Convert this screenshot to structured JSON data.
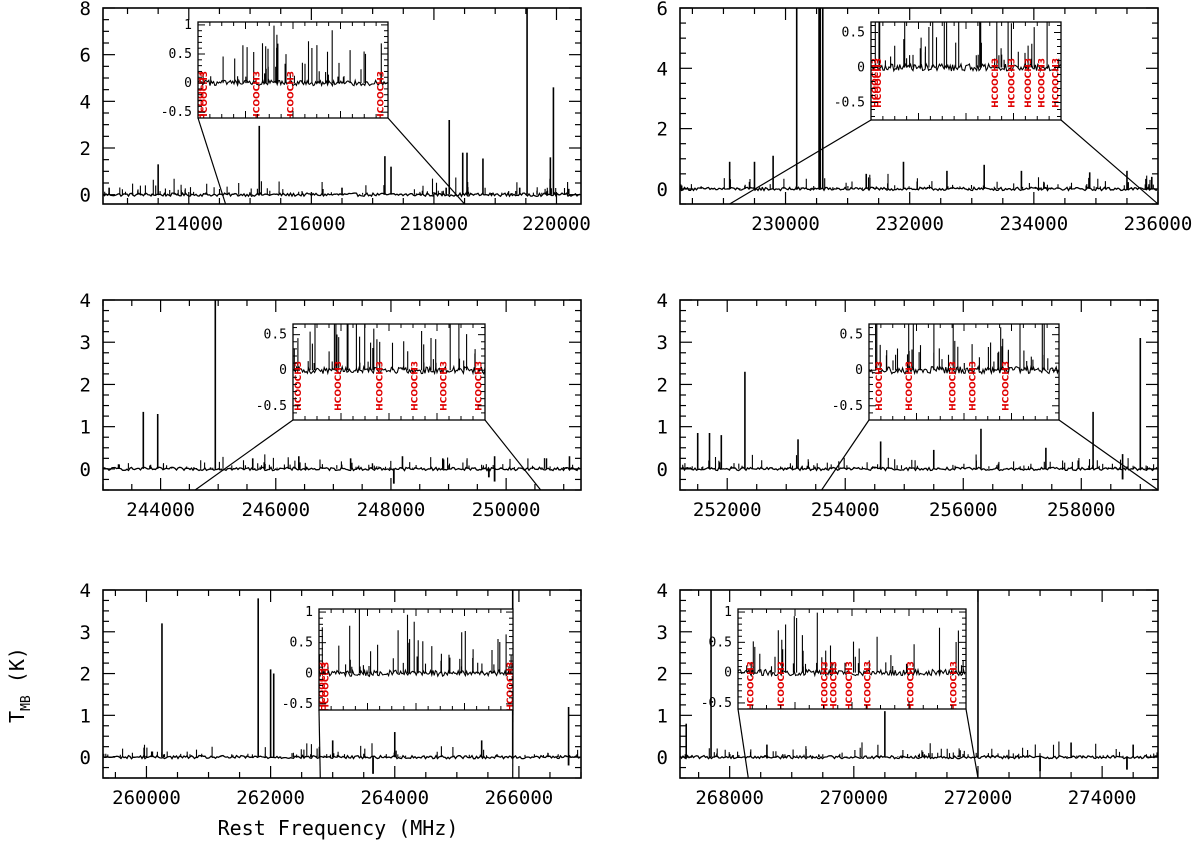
{
  "figure": {
    "xlabel": "Rest Frequency (MHz)",
    "ylabel_main": "T",
    "ylabel_sub": "MB",
    "ylabel_unit": " (K)"
  },
  "chart_data": [
    {
      "type": "line",
      "panel": "top-left",
      "xlim": [
        212600,
        220400
      ],
      "ylim": [
        -0.4,
        8
      ],
      "xticks": [
        214000,
        216000,
        218000,
        220000
      ],
      "yticks": [
        0,
        2,
        4,
        6,
        8
      ],
      "lines": [
        [
          212700,
          0.3
        ],
        [
          213500,
          1.3
        ],
        [
          215150,
          2.95
        ],
        [
          216500,
          0.3
        ],
        [
          217200,
          1.65
        ],
        [
          217300,
          1.2
        ],
        [
          218200,
          0.3
        ],
        [
          218250,
          3.2
        ],
        [
          218470,
          1.8
        ],
        [
          218540,
          1.8
        ],
        [
          218800,
          1.55
        ],
        [
          219400,
          0.3
        ],
        [
          219520,
          8.0
        ],
        [
          219900,
          1.6
        ],
        [
          219950,
          4.6
        ],
        [
          220200,
          0.25
        ]
      ],
      "absorptions": [],
      "inset": {
        "xlim": [
          214600,
          218500
        ],
        "ylim": [
          -0.6,
          1.05
        ],
        "yticks": [
          -0.5,
          0,
          0.5,
          1
        ],
        "labels": [
          {
            "x": 214650,
            "text": "HCOOCH3"
          },
          {
            "x": 214720,
            "text": "HCOOCH3"
          },
          {
            "x": 215800,
            "text": "HCOOCH3"
          },
          {
            "x": 216500,
            "text": "HCOOCH3"
          },
          {
            "x": 218350,
            "text": "HCOOCH3"
          }
        ]
      }
    },
    {
      "type": "line",
      "panel": "top-right",
      "xlim": [
        228300,
        236000
      ],
      "ylim": [
        -0.5,
        6
      ],
      "xticks": [
        230000,
        232000,
        234000,
        236000
      ],
      "yticks": [
        0,
        2,
        4,
        6
      ],
      "lines": [
        [
          229100,
          0.9
        ],
        [
          229500,
          0.9
        ],
        [
          229800,
          1.1
        ],
        [
          230180,
          6.2
        ],
        [
          230540,
          6.2
        ],
        [
          230560,
          6.2
        ],
        [
          230600,
          6.2
        ],
        [
          231300,
          0.5
        ],
        [
          231900,
          0.9
        ],
        [
          232600,
          0.6
        ],
        [
          233200,
          0.8
        ],
        [
          233800,
          0.6
        ],
        [
          234900,
          0.55
        ],
        [
          235500,
          0.6
        ],
        [
          235900,
          0.4
        ]
      ],
      "absorptions": [],
      "inset": {
        "xlim": [
          229100,
          236000
        ],
        "ylim": [
          -0.75,
          0.65
        ],
        "yticks": [
          -0.5,
          0,
          0.5
        ],
        "labels": [
          {
            "x": 229250,
            "text": "HCOOCH3"
          },
          {
            "x": 229350,
            "text": "HCOOCH3"
          },
          {
            "x": 233600,
            "text": "HCOOCH3"
          },
          {
            "x": 234200,
            "text": "HCOOCH3"
          },
          {
            "x": 234800,
            "text": "HCOOCH3"
          },
          {
            "x": 235300,
            "text": "HCOOCH3"
          },
          {
            "x": 235800,
            "text": "HCOOCH3"
          }
        ]
      }
    },
    {
      "type": "line",
      "panel": "middle-left",
      "xlim": [
        243000,
        251300
      ],
      "ylim": [
        -0.5,
        4
      ],
      "xticks": [
        244000,
        246000,
        248000,
        250000
      ],
      "yticks": [
        0,
        1,
        2,
        3,
        4
      ],
      "lines": [
        [
          243700,
          1.35
        ],
        [
          243950,
          1.3
        ],
        [
          244950,
          4.0
        ],
        [
          245600,
          0.25
        ],
        [
          246400,
          0.3
        ],
        [
          247300,
          0.25
        ],
        [
          248200,
          0.3
        ],
        [
          248900,
          0.25
        ],
        [
          249800,
          0.3
        ],
        [
          250700,
          0.25
        ],
        [
          251100,
          0.3
        ]
      ],
      "absorptions": [
        [
          248050,
          -0.35
        ],
        [
          249700,
          -0.2
        ],
        [
          249800,
          -0.3
        ]
      ],
      "inset": {
        "xlim": [
          244600,
          250600
        ],
        "ylim": [
          -0.7,
          0.65
        ],
        "yticks": [
          -0.5,
          0,
          0.5
        ],
        "labels": [
          {
            "x": 244750,
            "text": "HCOOCH3"
          },
          {
            "x": 246000,
            "text": "HCOOCH3"
          },
          {
            "x": 247300,
            "text": "HCOOCH3"
          },
          {
            "x": 248400,
            "text": "HCOOCH3"
          },
          {
            "x": 249300,
            "text": "HCOOCH3"
          },
          {
            "x": 250400,
            "text": "HCOOCH3"
          }
        ]
      }
    },
    {
      "type": "line",
      "panel": "middle-right",
      "xlim": [
        251200,
        259300
      ],
      "ylim": [
        -0.5,
        4
      ],
      "xticks": [
        252000,
        254000,
        256000,
        258000
      ],
      "yticks": [
        0,
        1,
        2,
        3,
        4
      ],
      "lines": [
        [
          251500,
          0.85
        ],
        [
          251700,
          0.85
        ],
        [
          251900,
          0.8
        ],
        [
          252300,
          2.3
        ],
        [
          253200,
          0.7
        ],
        [
          254600,
          0.65
        ],
        [
          255500,
          0.45
        ],
        [
          256300,
          0.95
        ],
        [
          257400,
          0.5
        ],
        [
          258200,
          1.35
        ],
        [
          258700,
          0.35
        ],
        [
          259000,
          3.1
        ]
      ],
      "absorptions": [
        [
          258700,
          -0.25
        ]
      ],
      "inset": {
        "xlim": [
          253600,
          259300
        ],
        "ylim": [
          -0.7,
          0.65
        ],
        "yticks": [
          -0.5,
          0,
          0.5
        ],
        "labels": [
          {
            "x": 253900,
            "text": "HCOOCH3"
          },
          {
            "x": 254800,
            "text": "HCOOCH3"
          },
          {
            "x": 256100,
            "text": "HCOOCH3"
          },
          {
            "x": 256700,
            "text": "HCOOCH3"
          },
          {
            "x": 257700,
            "text": "HCOOCH3"
          }
        ]
      }
    },
    {
      "type": "line",
      "panel": "bottom-left",
      "xlim": [
        259300,
        267000
      ],
      "ylim": [
        -0.5,
        4
      ],
      "xticks": [
        260000,
        262000,
        264000,
        266000
      ],
      "yticks": [
        0,
        1,
        2,
        3,
        4
      ],
      "lines": [
        [
          260250,
          3.2
        ],
        [
          261800,
          3.8
        ],
        [
          262000,
          2.1
        ],
        [
          262050,
          2.0
        ],
        [
          263000,
          0.4
        ],
        [
          264000,
          0.6
        ],
        [
          265400,
          0.4
        ],
        [
          265900,
          4.0
        ],
        [
          266800,
          1.2
        ]
      ],
      "absorptions": [
        [
          263650,
          -0.4
        ],
        [
          266800,
          -0.2
        ]
      ],
      "inset": {
        "xlim": [
          262800,
          265900
        ],
        "ylim": [
          -0.6,
          1.05
        ],
        "yticks": [
          -0.5,
          0,
          0.5,
          1
        ],
        "labels": [
          {
            "x": 262850,
            "text": "HCOOCH3"
          },
          {
            "x": 262900,
            "text": "HCOOCH3"
          },
          {
            "x": 265850,
            "text": "HCOOCH3"
          }
        ]
      }
    },
    {
      "type": "line",
      "panel": "bottom-right",
      "xlim": [
        267200,
        274900
      ],
      "ylim": [
        -0.5,
        4
      ],
      "xticks": [
        268000,
        270000,
        272000,
        274000
      ],
      "yticks": [
        0,
        1,
        2,
        3,
        4
      ],
      "lines": [
        [
          267300,
          0.8
        ],
        [
          267700,
          4.0
        ],
        [
          268600,
          0.3
        ],
        [
          270500,
          1.1
        ],
        [
          272000,
          4.0
        ],
        [
          273500,
          0.35
        ],
        [
          274500,
          0.3
        ]
      ],
      "absorptions": [
        [
          273000,
          -0.35
        ],
        [
          274400,
          -0.3
        ]
      ],
      "inset": {
        "xlim": [
          268300,
          272000
        ],
        "ylim": [
          -0.6,
          1.05
        ],
        "yticks": [
          -0.5,
          0,
          0.5,
          1
        ],
        "labels": [
          {
            "x": 268500,
            "text": "HCOOCH3"
          },
          {
            "x": 269000,
            "text": "HCOOCH3"
          },
          {
            "x": 269700,
            "text": "HCOOCH3"
          },
          {
            "x": 269850,
            "text": "HCOOCH3"
          },
          {
            "x": 270100,
            "text": "HCOOCH3"
          },
          {
            "x": 270400,
            "text": "HCOOCH3"
          },
          {
            "x": 271100,
            "text": "HCOOCH3"
          },
          {
            "x": 271800,
            "text": "HCOOCH3"
          }
        ]
      }
    }
  ]
}
